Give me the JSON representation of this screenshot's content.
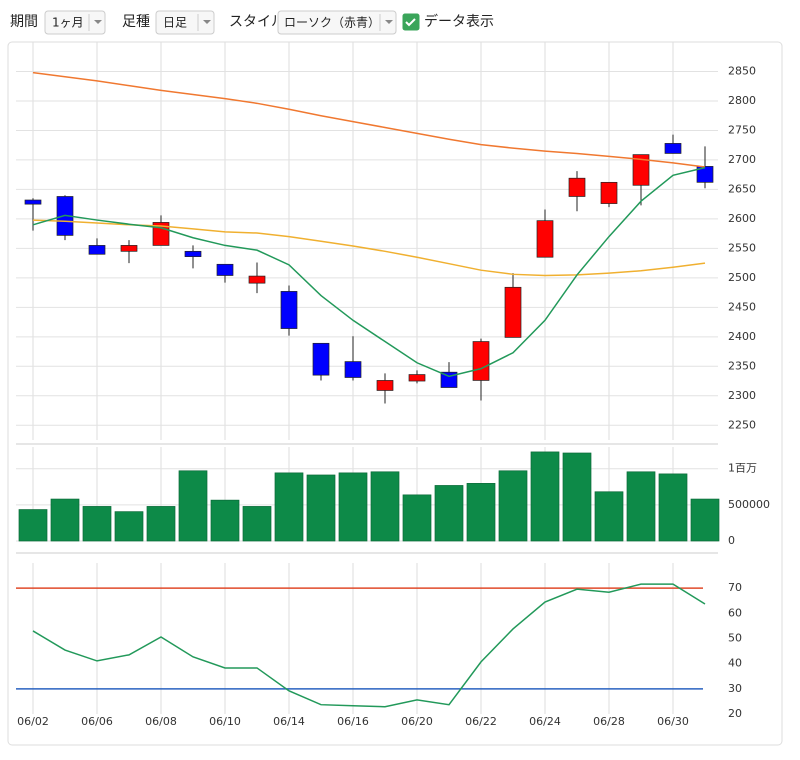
{
  "toolbar": {
    "period_label": "期間",
    "period": "1ヶ月",
    "bar_type_label": "足種",
    "bar_type": "日足",
    "style_label": "スタイル",
    "style": "ローソク（赤青）",
    "show_data": "データ表示",
    "show_data_checked": true
  },
  "chart_data": [
    {
      "type": "candlestick",
      "categories": [
        "06/02",
        null,
        "06/06",
        null,
        "06/08",
        null,
        "06/10",
        null,
        "06/14",
        null,
        "06/16",
        null,
        "06/20",
        null,
        "06/22",
        null,
        "06/24",
        null,
        "06/28",
        null,
        "06/30",
        null
      ],
      "open": [
        2632,
        2638,
        2555,
        2545,
        2555,
        2545,
        2523,
        2491,
        2477,
        2389,
        2358,
        2309,
        2325,
        2340,
        2326,
        2399,
        2535,
        2638,
        2626,
        2657,
        2728,
        2689
      ],
      "high": [
        2635,
        2640,
        2567,
        2564,
        2606,
        2555,
        2523,
        2526,
        2487,
        2389,
        2401,
        2338,
        2343,
        2357,
        2397,
        2508,
        2616,
        2681,
        2662,
        2709,
        2743,
        2723
      ],
      "low": [
        2580,
        2564,
        2540,
        2525,
        2555,
        2516,
        2492,
        2474,
        2402,
        2326,
        2326,
        2287,
        2321,
        2314,
        2292,
        2399,
        2535,
        2613,
        2620,
        2623,
        2711,
        2652
      ],
      "close": [
        2625,
        2572,
        2540,
        2555,
        2594,
        2536,
        2504,
        2503,
        2414,
        2335,
        2331,
        2326,
        2336,
        2314,
        2392,
        2484,
        2597,
        2669,
        2662,
        2709,
        2711,
        2662
      ],
      "up_color": "#ff0000",
      "down_color": "#0000ff",
      "series": [
        {
          "color": "#f07830",
          "values": [
            2848,
            2841,
            2834,
            2826,
            2818,
            2811,
            2804,
            2796,
            2786,
            2775,
            2765,
            2755,
            2745,
            2735,
            2726,
            2720,
            2715,
            2711,
            2706,
            2701,
            2695,
            2688
          ]
        },
        {
          "color": "#f0b030",
          "values": [
            2598,
            2596,
            2593,
            2590,
            2588,
            2583,
            2578,
            2576,
            2570,
            2562,
            2554,
            2545,
            2535,
            2524,
            2513,
            2506,
            2504,
            2505,
            2508,
            2512,
            2518,
            2525
          ]
        },
        {
          "color": "#22995a",
          "values": [
            2590,
            2606,
            2598,
            2591,
            2585,
            2568,
            2555,
            2547,
            2522,
            2470,
            2428,
            2392,
            2356,
            2333,
            2346,
            2373,
            2428,
            2505,
            2570,
            2630,
            2674,
            2687
          ]
        }
      ],
      "ylim": [
        2225,
        2900
      ],
      "yticks": [
        2250,
        2300,
        2350,
        2400,
        2450,
        2500,
        2550,
        2600,
        2650,
        2700,
        2750,
        2800,
        2850
      ],
      "grid": true
    },
    {
      "type": "bar",
      "color": "#0d8a48",
      "values": [
        435000,
        580000,
        478000,
        406000,
        478000,
        971000,
        565000,
        478000,
        942000,
        913000,
        942000,
        957000,
        638000,
        768000,
        797000,
        971000,
        1232000,
        1217000,
        681000,
        957000,
        928000,
        580000
      ],
      "ylim": [
        0,
        1300000
      ],
      "yticks": [
        0,
        500000,
        {
          "value": 1000000,
          "label": "1百万"
        }
      ],
      "grid": true
    },
    {
      "type": "line",
      "series": [
        {
          "color": "#22995a",
          "values": [
            53.0,
            45.4,
            41.1,
            43.5,
            50.6,
            42.7,
            38.3,
            38.3,
            29.2,
            23.7,
            23.3,
            22.9,
            25.6,
            23.7,
            40.7,
            53.8,
            64.5,
            69.6,
            68.4,
            71.6,
            71.6,
            63.7
          ]
        }
      ],
      "hlines": [
        {
          "value": 70,
          "color": "#e04a2a"
        },
        {
          "value": 30,
          "color": "#2a62c0"
        }
      ],
      "ylim": [
        20,
        80
      ],
      "yticks": [
        20,
        30,
        40,
        50,
        60,
        70
      ],
      "grid": false
    }
  ]
}
